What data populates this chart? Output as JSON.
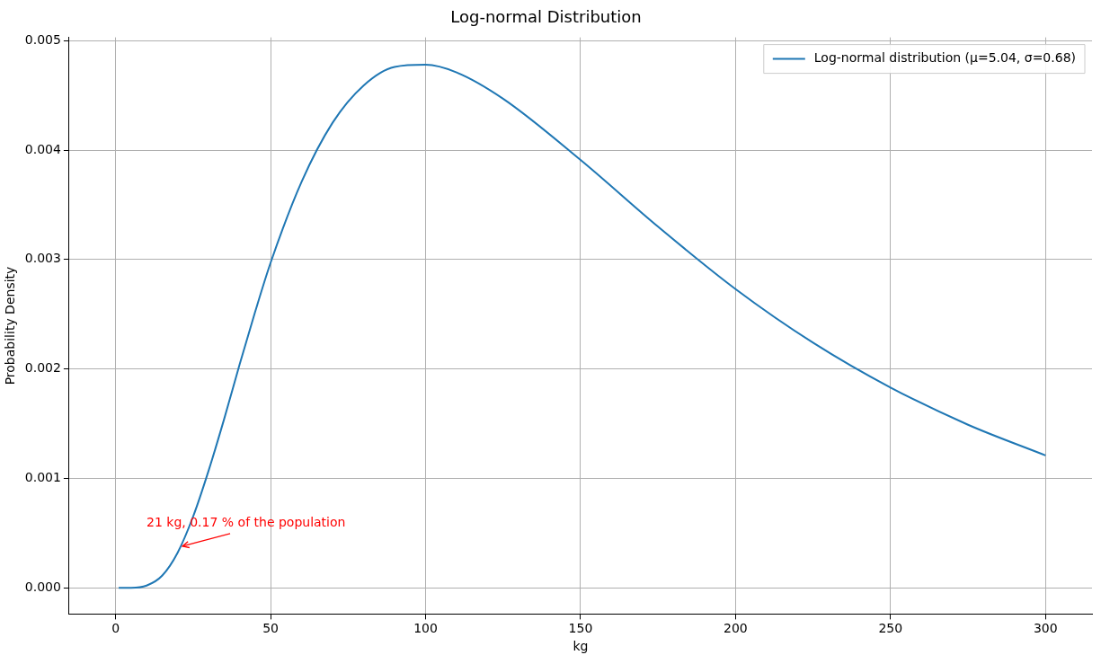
{
  "chart_data": {
    "type": "line",
    "title": "Log-normal Distribution",
    "xlabel": "kg",
    "ylabel": "Probability Density",
    "x": [
      1,
      5,
      10,
      15,
      20,
      25,
      30,
      35,
      40,
      45,
      50,
      60,
      70,
      80,
      90,
      100,
      110,
      125,
      150,
      175,
      200,
      225,
      250,
      275,
      300
    ],
    "series": [
      {
        "name": "Log-normal distribution (μ=5.04, σ=0.68)",
        "color": "#1f77b4",
        "values": [
          0,
          0,
          2e-05,
          0.00011,
          0.00032,
          0.00065,
          0.00107,
          0.00154,
          0.00204,
          0.00252,
          0.00297,
          0.00371,
          0.00425,
          0.00459,
          0.00476,
          0.00478,
          0.00471,
          0.00447,
          0.00391,
          0.0033,
          0.00273,
          0.00224,
          0.00183,
          0.00149,
          0.00121
        ]
      }
    ],
    "xlim": [
      -15,
      315
    ],
    "ylim": [
      -0.00024,
      0.00503
    ],
    "xticks": [
      0,
      50,
      100,
      150,
      200,
      250,
      300
    ],
    "yticks": [
      {
        "value": 0,
        "label": "0.000"
      },
      {
        "value": 0.001,
        "label": "0.001"
      },
      {
        "value": 0.002,
        "label": "0.002"
      },
      {
        "value": 0.003,
        "label": "0.003"
      },
      {
        "value": 0.004,
        "label": "0.004"
      },
      {
        "value": 0.005,
        "label": "0.005"
      }
    ],
    "annotations": [
      {
        "text": "21 kg, 0.17 % of the population",
        "x": 21,
        "y": 0.00038
      }
    ],
    "grid": true,
    "legend": "top right",
    "marker": "none",
    "line_style": "solid"
  }
}
